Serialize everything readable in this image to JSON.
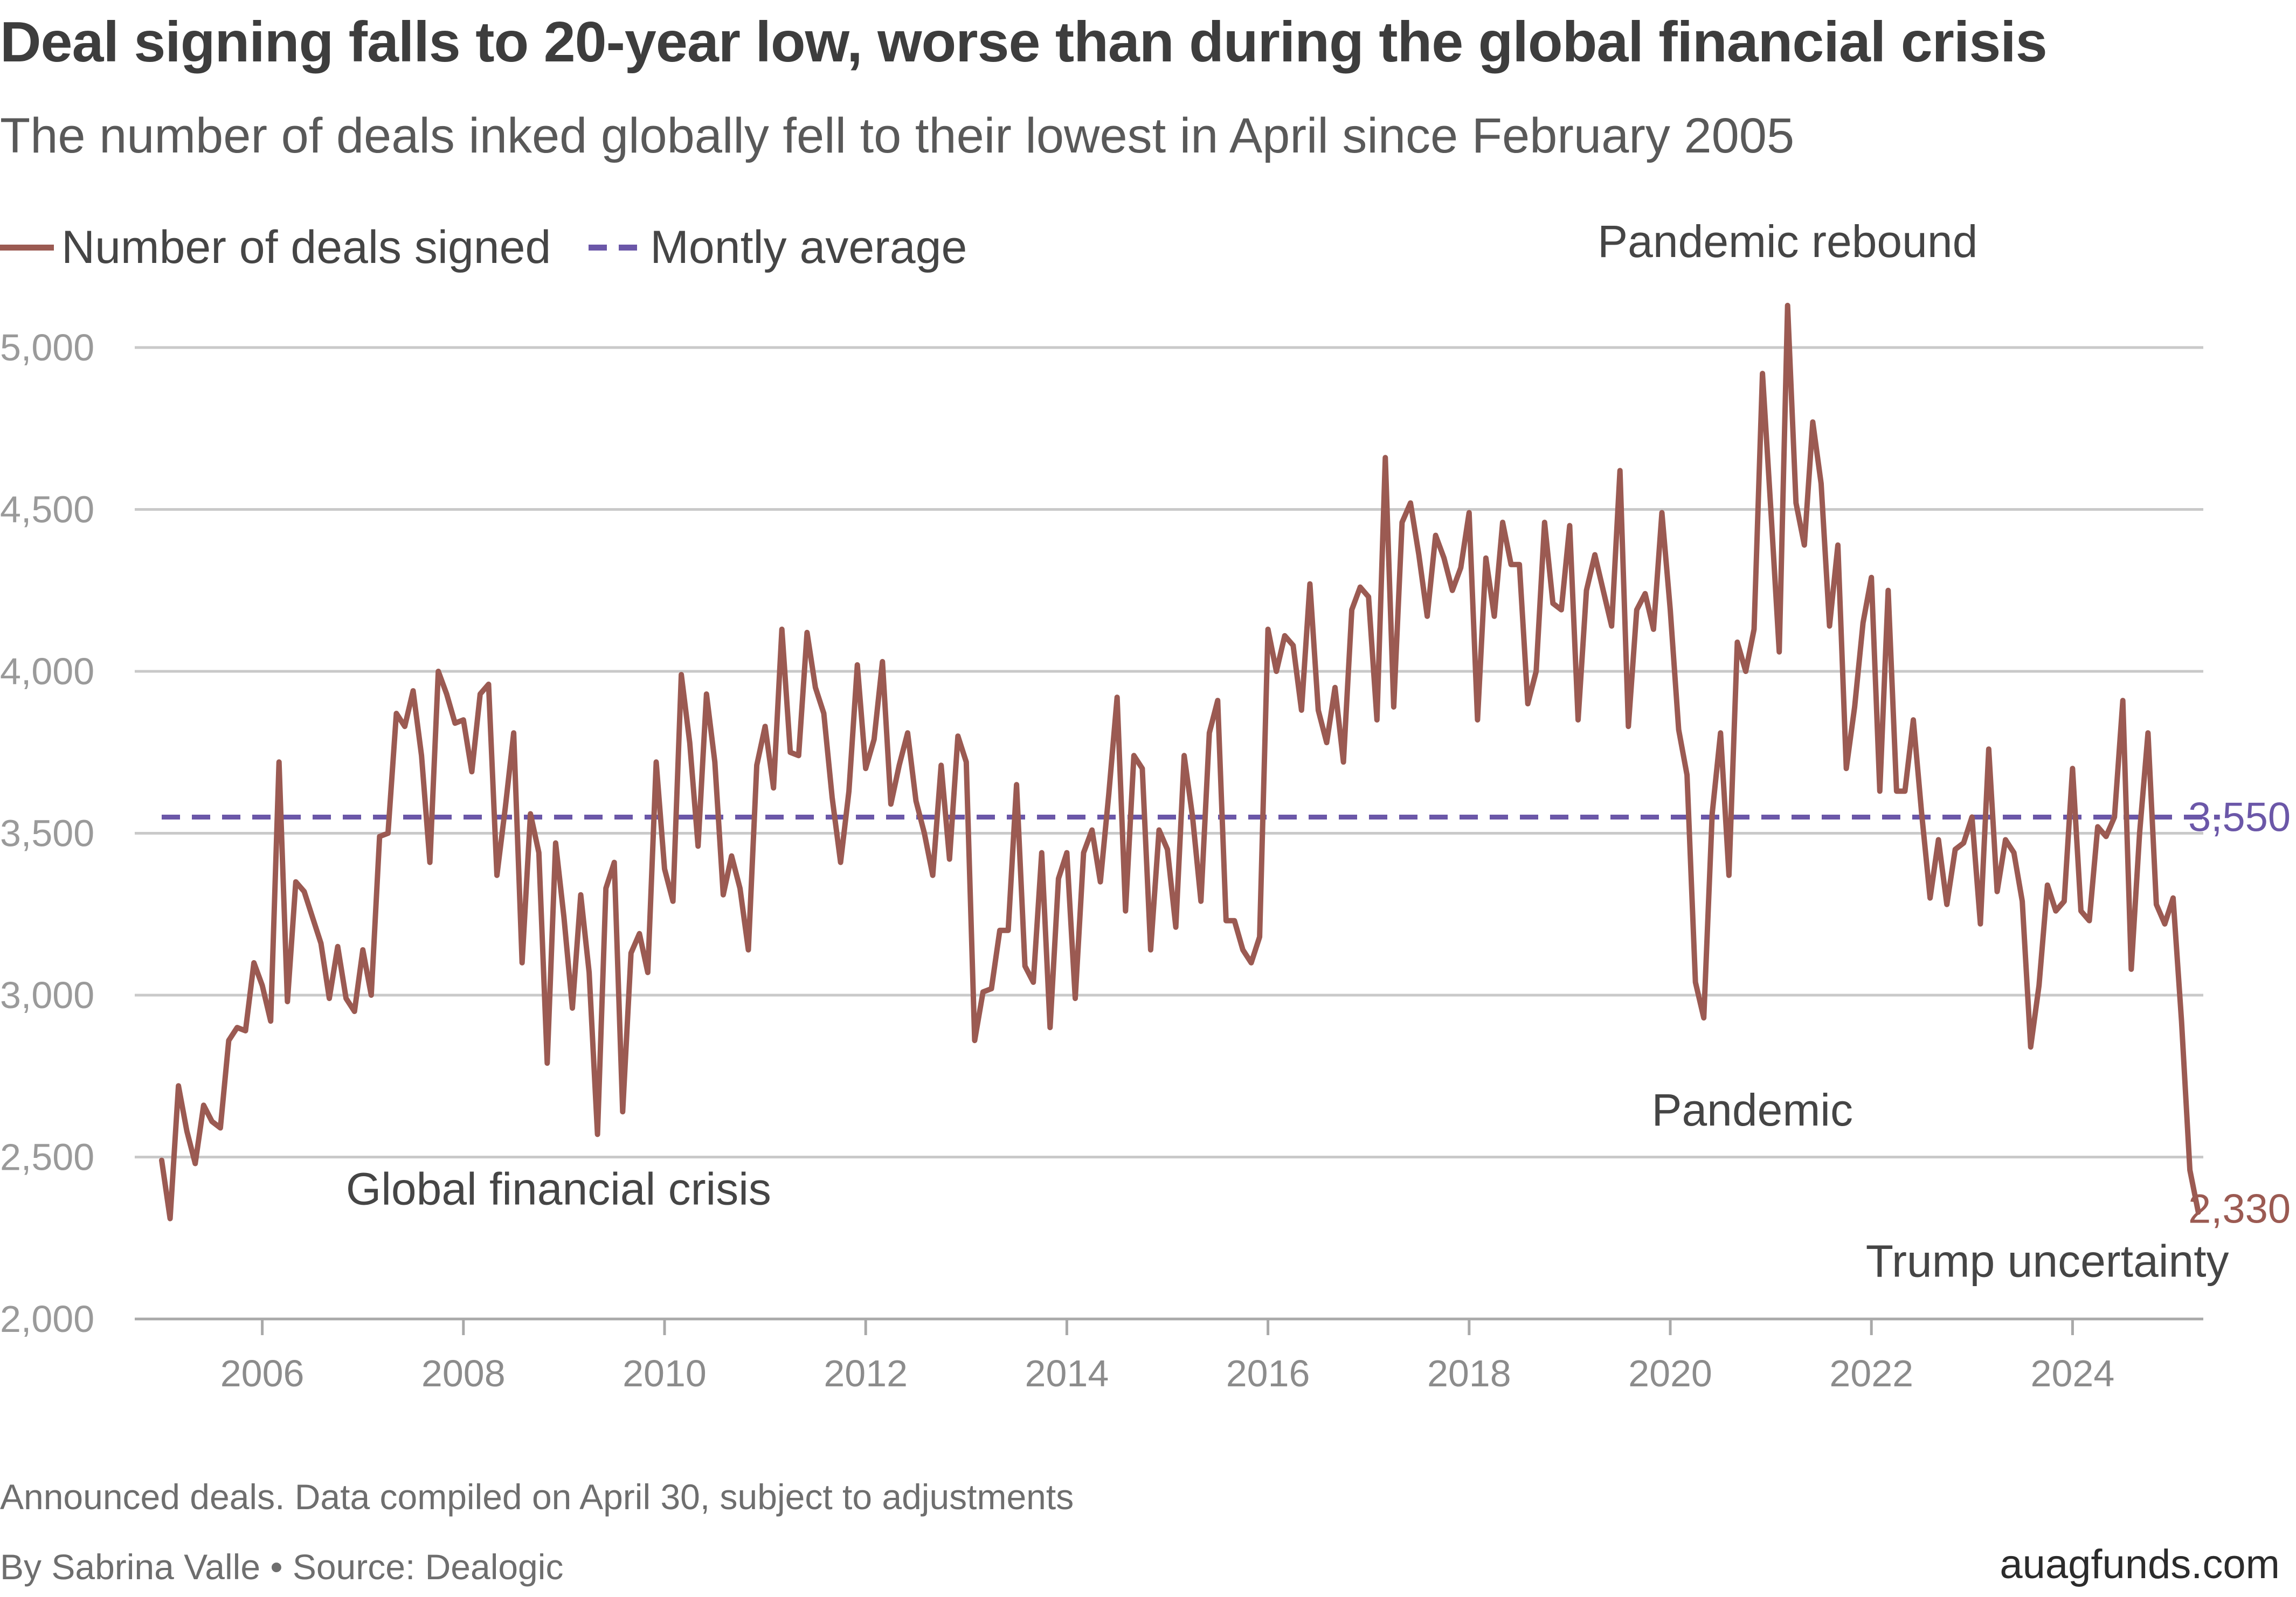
{
  "title": "Deal signing falls to 20-year low, worse than during the global financial crisis",
  "subtitle": "The number of deals inked globally fell to their lowest in April since February 2005",
  "legend": {
    "line_label": "Number of deals signed",
    "avg_label": "Montly average"
  },
  "footnote": "Announced deals. Data compiled on April 30, subject to adjustments",
  "byline": "By Sabrina Valle • Source: Dealogic",
  "brand": "auagfunds.com",
  "colors": {
    "line": "#9b5a52",
    "average": "#6b57a8",
    "grid": "#c9c9c9",
    "axis_text": "#9a9a9a"
  },
  "chart_data": {
    "type": "line",
    "title": "Deal signing falls to 20-year low, worse than during the global financial crisis",
    "ylim": [
      2000,
      5000
    ],
    "y_ticks": [
      2000,
      2500,
      3000,
      3500,
      4000,
      4500,
      5000
    ],
    "y_tick_labels": [
      "2,000",
      "2,500",
      "3,000",
      "3,500",
      "4,000",
      "4,500",
      "5,000"
    ],
    "x_ticks": [
      2006,
      2008,
      2010,
      2012,
      2014,
      2016,
      2018,
      2020,
      2022,
      2024
    ],
    "x_tick_labels": [
      "2006",
      "2008",
      "2010",
      "2012",
      "2014",
      "2016",
      "2018",
      "2020",
      "2022",
      "2024"
    ],
    "grid": true,
    "legend_position": "top-left",
    "x_start": "2005-01",
    "x_end": "2025-04",
    "series": [
      {
        "name": "Number of deals signed",
        "kind": "solid",
        "monthly_values": [
          2490,
          2310,
          2720,
          2580,
          2480,
          2660,
          2610,
          2590,
          2860,
          2900,
          2890,
          3100,
          3030,
          2920,
          3720,
          2980,
          3350,
          3320,
          3240,
          3160,
          2990,
          3150,
          2990,
          2950,
          3140,
          3000,
          3490,
          3500,
          3870,
          3830,
          3940,
          3740,
          3410,
          4000,
          3930,
          3840,
          3850,
          3690,
          3930,
          3960,
          3370,
          3580,
          3810,
          3100,
          3560,
          3440,
          2790,
          3470,
          3240,
          2960,
          3310,
          3070,
          2570,
          3330,
          3410,
          2640,
          3130,
          3190,
          3070,
          3720,
          3390,
          3290,
          3990,
          3780,
          3460,
          3930,
          3720,
          3310,
          3430,
          3330,
          3140,
          3710,
          3830,
          3640,
          4130,
          3750,
          3740,
          4120,
          3950,
          3870,
          3610,
          3410,
          3630,
          4020,
          3700,
          3790,
          4030,
          3590,
          3710,
          3810,
          3600,
          3500,
          3370,
          3710,
          3420,
          3800,
          3720,
          2860,
          3010,
          3020,
          3200,
          3200,
          3650,
          3090,
          3040,
          3440,
          2900,
          3360,
          3440,
          2990,
          3440,
          3510,
          3350,
          3620,
          3920,
          3260,
          3740,
          3700,
          3140,
          3510,
          3450,
          3210,
          3740,
          3550,
          3290,
          3810,
          3910,
          3230,
          3230,
          3140,
          3100,
          3180,
          4130,
          4000,
          4110,
          4080,
          3880,
          4270,
          3880,
          3780,
          3950,
          3720,
          4190,
          4260,
          4230,
          3850,
          4660,
          3890,
          4460,
          4520,
          4360,
          4170,
          4420,
          4350,
          4250,
          4320,
          4490,
          3850,
          4350,
          4170,
          4460,
          4330,
          4330,
          3900,
          4000,
          4460,
          4210,
          4190,
          4450,
          3850,
          4250,
          4360,
          4250,
          4140,
          4620,
          3830,
          4190,
          4240,
          4130,
          4490,
          4190,
          3820,
          3680,
          3040,
          2930,
          3560,
          3810,
          3370,
          4090,
          4000,
          4130,
          4920,
          4500,
          4060,
          5130,
          4520,
          4390,
          4770,
          4580,
          4140,
          4390,
          3700,
          3890,
          4150,
          4290,
          3630,
          4250,
          3630,
          3630,
          3850,
          3560,
          3300,
          3480,
          3280,
          3450,
          3470,
          3550,
          3220,
          3760,
          3320,
          3480,
          3440,
          3290,
          2840,
          3030,
          3340,
          3260,
          3290,
          3700,
          3260,
          3230,
          3520,
          3490,
          3550,
          3910,
          3080,
          3500,
          3810,
          3280,
          3220,
          3300,
          2920,
          2460,
          2330
        ]
      },
      {
        "name": "Montly average",
        "kind": "dashed",
        "value": 3550
      }
    ],
    "end_labels": {
      "average": "3,550",
      "last_value": "2,330"
    },
    "annotations": [
      {
        "text": "Pandemic rebound",
        "x": "2021-03",
        "y": 5130,
        "placement": "above"
      },
      {
        "text": "Pandemic",
        "x": "2020-05",
        "y": 2930,
        "placement": "below"
      },
      {
        "text": "Global financial crisis",
        "x": "2009-01",
        "y": 2570,
        "placement": "below-left"
      },
      {
        "text": "Trump uncertainty",
        "x": "2025-04",
        "y": 2330,
        "placement": "below"
      }
    ]
  }
}
